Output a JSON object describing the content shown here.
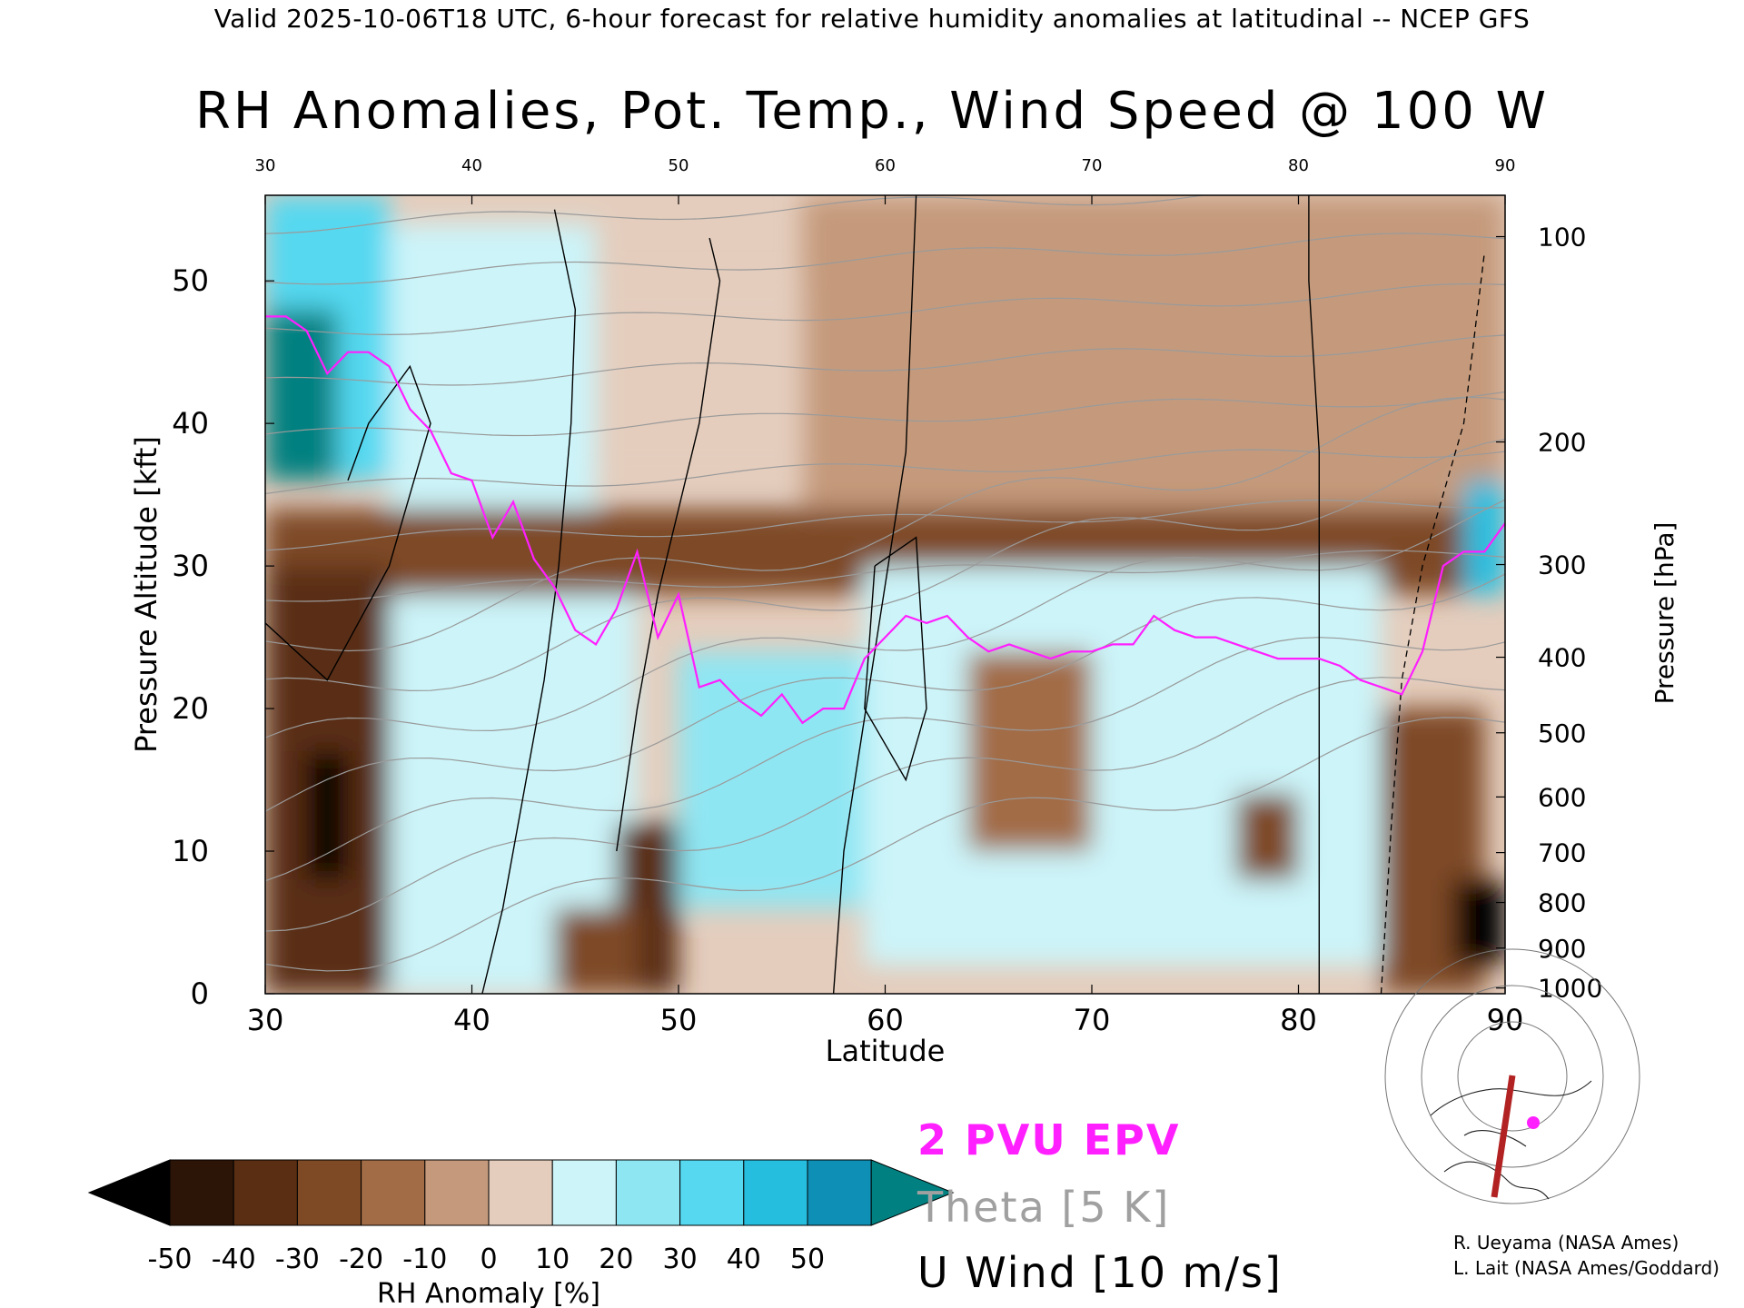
{
  "header": "Valid 2025-10-06T18 UTC, 6-hour forecast for relative humidity anomalies at latitudinal -- NCEP GFS",
  "chart_data": {
    "type": "heatmap",
    "title": "RH Anomalies, Pot. Temp., Wind Speed @ 100 W",
    "xlabel": "Latitude",
    "ylabel_left": "Pressure Altitude [kft]",
    "ylabel_right": "Pressure [hPa]",
    "xlim": [
      30,
      90
    ],
    "ylim": [
      0,
      56
    ],
    "x_ticks": [
      30,
      40,
      50,
      60,
      70,
      80,
      90
    ],
    "y_ticks": [
      0,
      10,
      20,
      30,
      40,
      50
    ],
    "pressure_ticks": [
      {
        "label": "100",
        "kft": 53.1
      },
      {
        "label": "200",
        "kft": 38.7
      },
      {
        "label": "300",
        "kft": 30.1
      },
      {
        "label": "400",
        "kft": 23.6
      },
      {
        "label": "500",
        "kft": 18.3
      },
      {
        "label": "600",
        "kft": 13.8
      },
      {
        "label": "700",
        "kft": 9.9
      },
      {
        "label": "800",
        "kft": 6.4
      },
      {
        "label": "900",
        "kft": 3.2
      },
      {
        "label": "1000",
        "kft": 0.4
      }
    ],
    "colorbar": {
      "label": "RH Anomaly [%]",
      "ticks": [
        "-50",
        "-40",
        "-30",
        "-20",
        "-10",
        "0",
        "10",
        "20",
        "30",
        "40",
        "50"
      ],
      "colors": [
        "#000000",
        "#2c1507",
        "#5a2e12",
        "#7e4a26",
        "#a26c46",
        "#c59a7c",
        "#e4cdbd",
        "#ccf4f9",
        "#8fe6f3",
        "#55d8f0",
        "#26bedf",
        "#0e8fb5",
        "#008080"
      ]
    },
    "anomaly_regions": [
      {
        "x": [
          30,
          36
        ],
        "y": [
          36,
          56
        ],
        "value": 35
      },
      {
        "x": [
          30,
          33.5
        ],
        "y": [
          36,
          48
        ],
        "value": 55
      },
      {
        "x": [
          36,
          46
        ],
        "y": [
          34,
          54
        ],
        "value": 12
      },
      {
        "x": [
          46,
          56
        ],
        "y": [
          36,
          50
        ],
        "value": 2
      },
      {
        "x": [
          56,
          90
        ],
        "y": [
          34,
          56
        ],
        "value": -8
      },
      {
        "x": [
          30,
          90
        ],
        "y": [
          28,
          34
        ],
        "value": -22
      },
      {
        "x": [
          30,
          36
        ],
        "y": [
          0,
          30
        ],
        "value": -32
      },
      {
        "x": [
          32,
          34
        ],
        "y": [
          8,
          17
        ],
        "value": -55
      },
      {
        "x": [
          36,
          48
        ],
        "y": [
          0,
          28
        ],
        "value": 15
      },
      {
        "x": [
          47,
          50
        ],
        "y": [
          0,
          12
        ],
        "value": -35
      },
      {
        "x": [
          44,
          48
        ],
        "y": [
          0,
          6
        ],
        "value": -25
      },
      {
        "x": [
          50,
          59
        ],
        "y": [
          6,
          24
        ],
        "value": 22
      },
      {
        "x": [
          59,
          84
        ],
        "y": [
          2,
          30
        ],
        "value": 18
      },
      {
        "x": [
          64,
          70
        ],
        "y": [
          10,
          24
        ],
        "value": -12
      },
      {
        "x": [
          77,
          80
        ],
        "y": [
          8,
          14
        ],
        "value": -25
      },
      {
        "x": [
          84,
          89
        ],
        "y": [
          0,
          20
        ],
        "value": -30
      },
      {
        "x": [
          87.5,
          90
        ],
        "y": [
          2,
          8
        ],
        "value": -55
      },
      {
        "x": [
          88,
          90
        ],
        "y": [
          28,
          36
        ],
        "value": 45
      }
    ],
    "theta_levels": [
      280,
      290,
      300,
      310,
      320,
      330,
      340,
      350,
      360,
      370,
      380,
      390,
      400,
      410,
      420
    ],
    "pvu_line": {
      "name": "2 PVU EPV",
      "x": [
        30,
        31,
        32,
        33,
        34,
        35,
        36,
        37,
        38,
        39,
        40,
        41,
        42,
        43,
        44,
        45,
        46,
        47,
        48,
        49,
        50,
        51,
        52,
        53,
        54,
        55,
        56,
        57,
        58,
        59,
        60,
        61,
        62,
        63,
        64,
        65,
        66,
        67,
        68,
        69,
        70,
        71,
        72,
        73,
        74,
        75,
        76,
        77,
        78,
        79,
        80,
        81,
        82,
        83,
        84,
        85,
        86,
        87,
        88,
        89,
        90
      ],
      "y": [
        47.5,
        47.5,
        46.5,
        43.5,
        45,
        45,
        44,
        41,
        39.5,
        36.5,
        36,
        32,
        34.5,
        30.5,
        28.5,
        25.5,
        24.5,
        27,
        31,
        25,
        28,
        21.5,
        22,
        20.5,
        19.5,
        21,
        19,
        20,
        20,
        23.5,
        25,
        26.5,
        26,
        26.5,
        25,
        24,
        24.5,
        24,
        23.5,
        24,
        24,
        24.5,
        24.5,
        26.5,
        25.5,
        25,
        25,
        24.5,
        24,
        23.5,
        23.5,
        23.5,
        23,
        22,
        21.5,
        21,
        24,
        30,
        31,
        31,
        33
      ]
    },
    "theta_label": "Theta [5 K]",
    "wind_label": "U Wind [10 m/s]"
  },
  "legend": {
    "epv": "2 PVU EPV",
    "theta": "Theta",
    "theta_units": "[5 K]",
    "wind": "U Wind",
    "wind_units": "[10 m/s]"
  },
  "credits": {
    "line1": "R. Ueyama (NASA Ames)",
    "line2": "L. Lait (NASA Ames/Goddard)"
  }
}
